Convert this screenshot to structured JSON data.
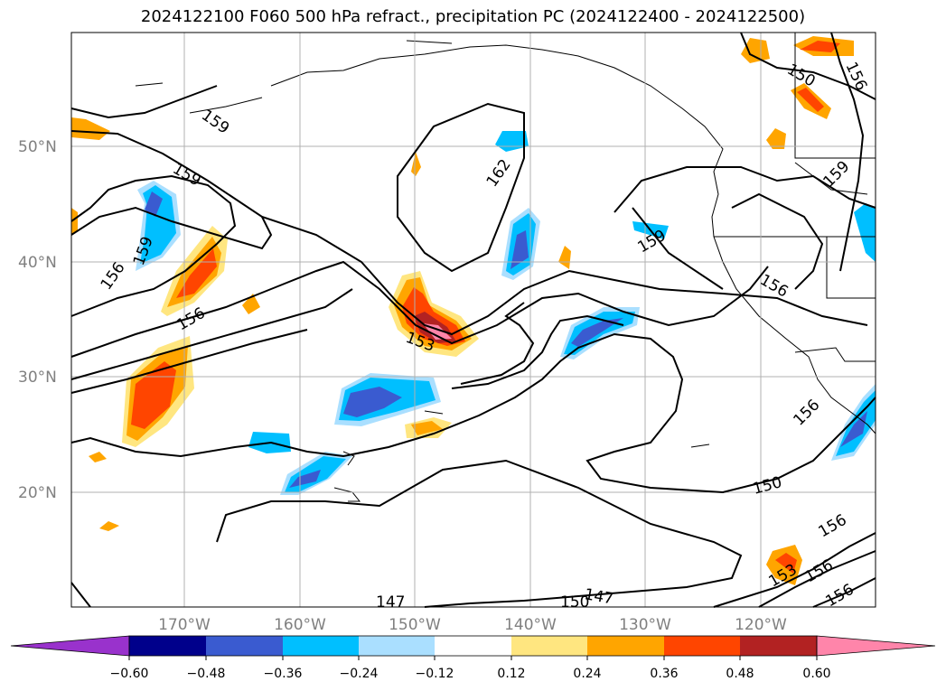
{
  "title": "2024122100 F060 500 hPa refract., precipitation PC (2024122400 - 2024122500)",
  "lat_labels": [
    "50°N",
    "40°N",
    "30°N",
    "20°N"
  ],
  "lon_labels": [
    "170°W",
    "160°W",
    "150°W",
    "140°W",
    "130°W",
    "120°W"
  ],
  "contour_labels": [
    "159",
    "159",
    "159",
    "156",
    "156",
    "153",
    "162",
    "159",
    "156",
    "159",
    "156",
    "156",
    "150",
    "153",
    "156",
    "156",
    "150",
    "147",
    "147",
    "150",
    "156"
  ],
  "colorbar": {
    "ticks": [
      "−0.60",
      "−0.48",
      "−0.36",
      "−0.24",
      "−0.12",
      "0.12",
      "0.24",
      "0.36",
      "0.48",
      "0.60"
    ],
    "colors": [
      "#9932cc",
      "#00008b",
      "#3a5bd0",
      "#00bfff",
      "#aadfff",
      "#ffffff",
      "#ffe680",
      "#ffa500",
      "#ff4500",
      "#b22222",
      "#ff85aa"
    ]
  }
}
